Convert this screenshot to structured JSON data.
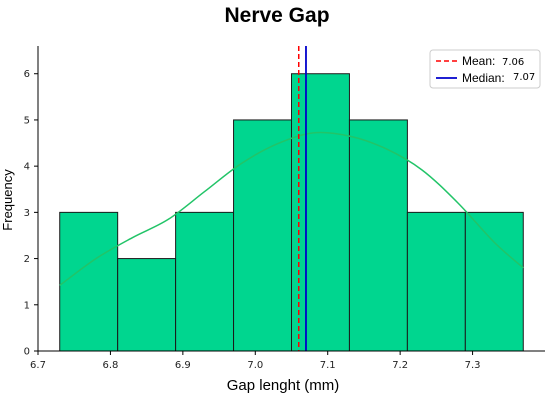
{
  "chart_data": {
    "type": "bar",
    "title": "Nerve Gap",
    "xlabel": "Gap lenght (mm)",
    "ylabel": "Frequency",
    "xlim": [
      6.7,
      7.4
    ],
    "ylim": [
      0,
      6.6
    ],
    "xticks": [
      "6.7",
      "6.8",
      "6.9",
      "7.0",
      "7.1",
      "7.2",
      "7.3"
    ],
    "yticks": [
      "0",
      "1",
      "2",
      "3",
      "4",
      "5",
      "6"
    ],
    "bins": [
      {
        "start": 6.73,
        "end": 6.81,
        "value": 3
      },
      {
        "start": 6.81,
        "end": 6.89,
        "value": 2
      },
      {
        "start": 6.89,
        "end": 6.97,
        "value": 3
      },
      {
        "start": 6.97,
        "end": 7.05,
        "value": 5
      },
      {
        "start": 7.05,
        "end": 7.13,
        "value": 6
      },
      {
        "start": 7.13,
        "end": 7.21,
        "value": 5
      },
      {
        "start": 7.21,
        "end": 7.29,
        "value": 3
      },
      {
        "start": 7.29,
        "end": 7.37,
        "value": 3
      }
    ],
    "kde": {
      "x": [
        6.73,
        6.78,
        6.83,
        6.88,
        6.93,
        6.98,
        7.03,
        7.08,
        7.13,
        7.18,
        7.23,
        7.28,
        7.33,
        7.37
      ],
      "y": [
        1.42,
        2.0,
        2.45,
        2.85,
        3.45,
        4.05,
        4.48,
        4.72,
        4.65,
        4.38,
        3.92,
        3.2,
        2.35,
        1.8
      ]
    },
    "mean": {
      "label": "Mean:",
      "value": 7.06,
      "display": "7.06",
      "color": "#ff0000"
    },
    "median": {
      "label": "Median:",
      "value": 7.07,
      "display": "7.07",
      "color": "#0000cc"
    },
    "colors": {
      "bar_fill": "#00d68f",
      "bar_edge": "#1a1a1a",
      "kde": "#22c468"
    },
    "grid": false,
    "legend_position": "top-right"
  }
}
